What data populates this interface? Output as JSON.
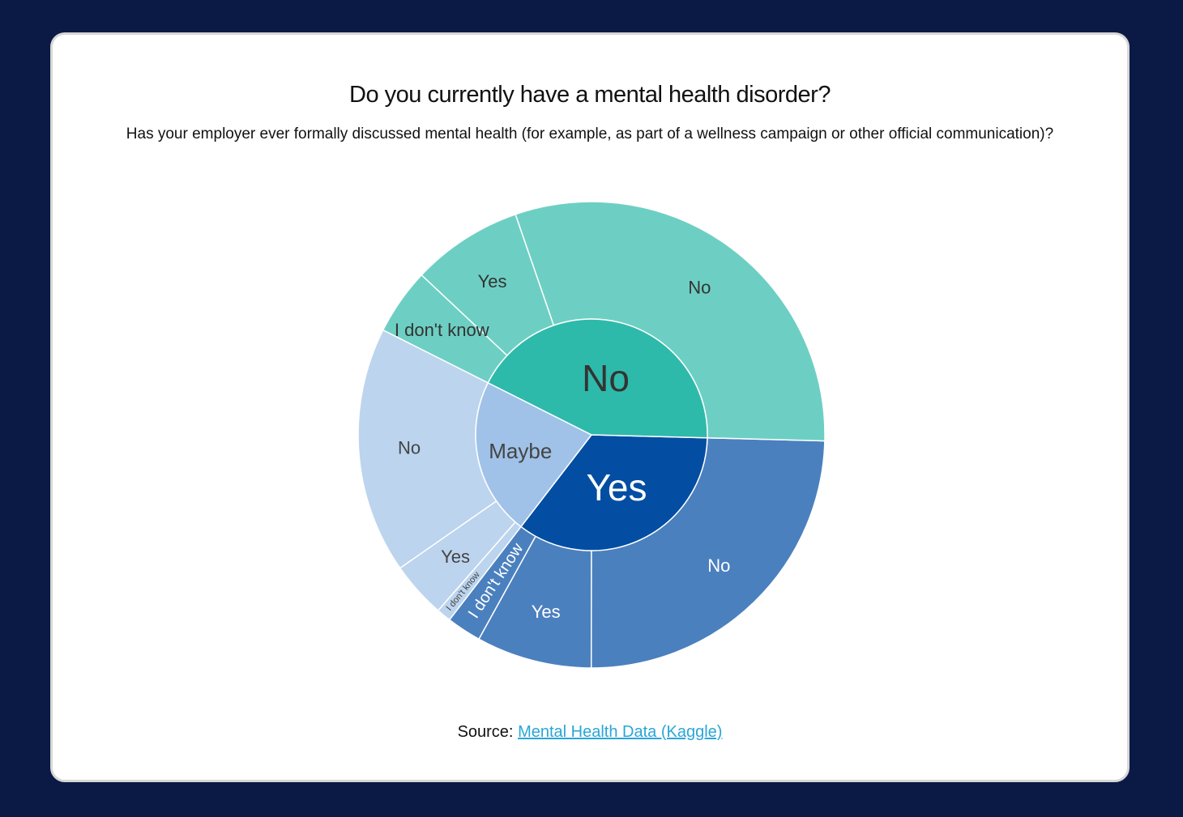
{
  "chart_data": {
    "type": "sunburst",
    "title": "Do you currently have a mental health disorder?",
    "subtitle": "Has your employer ever formally discussed mental health (for example, as part of a wellness campaign or other official communication)?",
    "inner": [
      {
        "label": "Yes",
        "value": 35,
        "color": "#034ea2",
        "text_color": "#ffffff"
      },
      {
        "label": "Maybe",
        "value": 22,
        "color": "#a0c2e8",
        "text_color": "#444444"
      },
      {
        "label": "No",
        "value": 43,
        "color": "#2ebaaa",
        "text_color": "#333333"
      }
    ],
    "outer": [
      {
        "parent": "Yes",
        "label": "No",
        "value": 24.6,
        "color": "#4b80bf",
        "text_color": "#ffffff"
      },
      {
        "parent": "Yes",
        "label": "Yes",
        "value": 8.0,
        "color": "#4b80bf",
        "text_color": "#ffffff"
      },
      {
        "parent": "Yes",
        "label": "I don't know",
        "value": 2.4,
        "color": "#4b80bf",
        "text_color": "#ffffff"
      },
      {
        "parent": "Maybe",
        "label": "I don't know",
        "value": 1.0,
        "color": "#bcd4ee",
        "text_color": "#444444"
      },
      {
        "parent": "Maybe",
        "label": "Yes",
        "value": 3.9,
        "color": "#bcd4ee",
        "text_color": "#444444"
      },
      {
        "parent": "Maybe",
        "label": "No",
        "value": 17.1,
        "color": "#bcd4ee",
        "text_color": "#444444"
      },
      {
        "parent": "No",
        "label": "I don't know",
        "value": 4.6,
        "color": "#6dcfc3",
        "text_color": "#333333"
      },
      {
        "parent": "No",
        "label": "Yes",
        "value": 7.7,
        "color": "#6dcfc3",
        "text_color": "#333333"
      },
      {
        "parent": "No",
        "label": "No",
        "value": 30.7,
        "color": "#6dcfc3",
        "text_color": "#333333"
      }
    ]
  },
  "source": {
    "prefix": "Source:",
    "link_text": "Mental Health Data (Kaggle)"
  }
}
